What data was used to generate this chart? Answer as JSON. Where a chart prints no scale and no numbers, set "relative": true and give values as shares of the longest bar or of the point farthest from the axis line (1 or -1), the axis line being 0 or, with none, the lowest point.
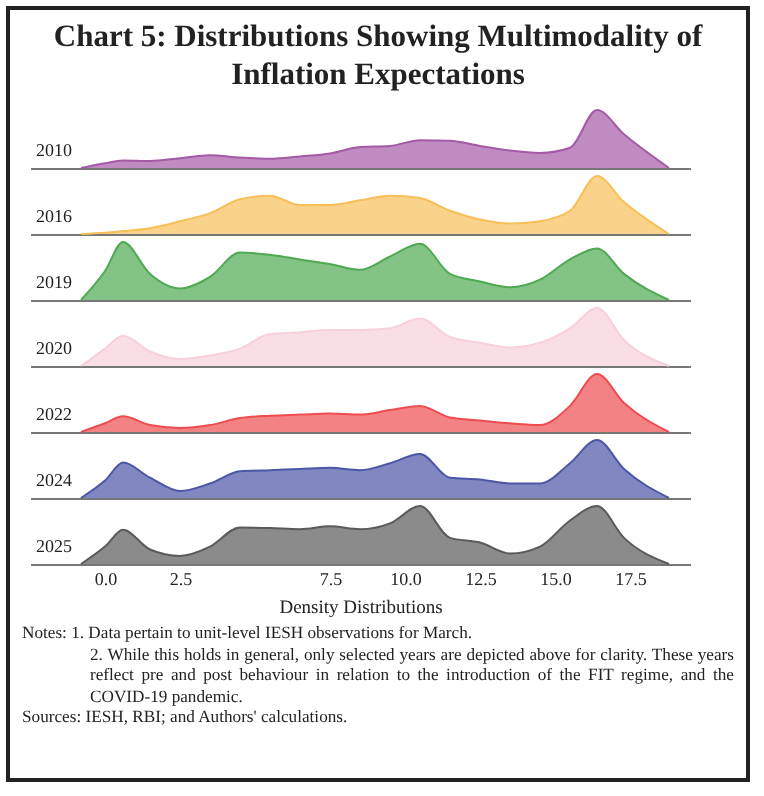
{
  "chart_data": [
    {
      "type": "area",
      "title": "Chart 5: Distributions Showing Multimodality of Inflation Expectations",
      "relative": true,
      "tick_labels": false,
      "xlim": [
        -2.5,
        19.5
      ],
      "x": [
        -0.8,
        0,
        0.6,
        1.5,
        2.5,
        3.5,
        4.5,
        5.5,
        6.5,
        7.5,
        8.5,
        9.5,
        10.5,
        11.5,
        12.5,
        13.5,
        14.5,
        15.5,
        16.4,
        17.3,
        18.8
      ],
      "series": [
        {
          "name": "2010",
          "color": "#a45aa5",
          "values": [
            0,
            0.08,
            0.13,
            0.12,
            0.17,
            0.22,
            0.18,
            0.16,
            0.2,
            0.25,
            0.36,
            0.38,
            0.48,
            0.47,
            0.38,
            0.3,
            0.26,
            0.35,
            1,
            0.58,
            0
          ]
        }
      ]
    },
    {
      "type": "area",
      "relative": true,
      "tick_labels": false,
      "xlim": [
        -2.5,
        19.5
      ],
      "x": [
        -0.8,
        0,
        0.6,
        1.5,
        2.5,
        3.5,
        4.5,
        5.5,
        6.5,
        7.5,
        8.5,
        9.5,
        10.5,
        11.5,
        12.5,
        13.5,
        14.5,
        15.5,
        16.4,
        17.3,
        18.8
      ],
      "series": [
        {
          "name": "2016",
          "color": "#f8bf58",
          "values": [
            0,
            0.02,
            0.05,
            0.1,
            0.22,
            0.36,
            0.6,
            0.66,
            0.5,
            0.5,
            0.58,
            0.66,
            0.62,
            0.4,
            0.25,
            0.18,
            0.22,
            0.4,
            1,
            0.55,
            0
          ]
        }
      ]
    },
    {
      "type": "area",
      "relative": true,
      "tick_labels": false,
      "xlim": [
        -2.5,
        19.5
      ],
      "x": [
        -0.8,
        0,
        0.6,
        1.5,
        2.5,
        3.5,
        4.5,
        5.5,
        6.5,
        7.5,
        8.5,
        9.5,
        10.5,
        11.5,
        12.5,
        13.5,
        14.5,
        15.5,
        16.4,
        17.3,
        18.8
      ],
      "series": [
        {
          "name": "2019",
          "color": "#4ea952",
          "values": [
            0,
            0.5,
            1,
            0.45,
            0.2,
            0.4,
            0.82,
            0.78,
            0.7,
            0.62,
            0.52,
            0.75,
            0.97,
            0.45,
            0.32,
            0.22,
            0.35,
            0.7,
            0.89,
            0.45,
            0
          ]
        }
      ]
    },
    {
      "type": "area",
      "relative": true,
      "tick_labels": false,
      "xlim": [
        -2.5,
        19.5
      ],
      "x": [
        -0.8,
        0,
        0.6,
        1.5,
        2.5,
        3.5,
        4.5,
        5.5,
        6.5,
        7.5,
        8.5,
        9.5,
        10.5,
        11.5,
        12.5,
        13.5,
        14.5,
        15.5,
        16.4,
        17.3,
        18.8
      ],
      "series": [
        {
          "name": "2020",
          "color": "#f7d0da",
          "values": [
            0,
            0.3,
            0.52,
            0.25,
            0.12,
            0.18,
            0.3,
            0.55,
            0.58,
            0.62,
            0.62,
            0.65,
            0.82,
            0.5,
            0.4,
            0.32,
            0.4,
            0.65,
            1,
            0.45,
            0
          ]
        }
      ]
    },
    {
      "type": "area",
      "relative": true,
      "tick_labels": false,
      "xlim": [
        -2.5,
        19.5
      ],
      "x": [
        -0.8,
        0,
        0.6,
        1.5,
        2.5,
        3.5,
        4.5,
        5.5,
        6.5,
        7.5,
        8.5,
        9.5,
        10.5,
        11.5,
        12.5,
        13.5,
        14.5,
        15.5,
        16.4,
        17.3,
        18.8
      ],
      "series": [
        {
          "name": "2022",
          "color": "#ee4d50",
          "values": [
            0,
            0.15,
            0.27,
            0.12,
            0.07,
            0.12,
            0.24,
            0.28,
            0.3,
            0.32,
            0.3,
            0.38,
            0.45,
            0.25,
            0.2,
            0.15,
            0.12,
            0.45,
            1,
            0.5,
            0
          ]
        }
      ]
    },
    {
      "type": "area",
      "relative": true,
      "tick_labels": false,
      "xlim": [
        -2.5,
        19.5
      ],
      "x": [
        -0.8,
        0,
        0.6,
        1.5,
        2.5,
        3.5,
        4.5,
        5.5,
        6.5,
        7.5,
        8.5,
        9.5,
        10.5,
        11.5,
        12.5,
        13.5,
        14.5,
        15.5,
        16.4,
        17.3,
        18.8
      ],
      "series": [
        {
          "name": "2024",
          "color": "#4c56a6",
          "values": [
            0,
            0.3,
            0.61,
            0.35,
            0.12,
            0.25,
            0.46,
            0.48,
            0.5,
            0.52,
            0.48,
            0.6,
            0.76,
            0.35,
            0.32,
            0.25,
            0.25,
            0.6,
            1,
            0.5,
            0
          ]
        }
      ]
    },
    {
      "type": "area",
      "relative": true,
      "tick_labels": "x",
      "xlabel": "Density Distributions",
      "xlim": [
        -2.5,
        19.5
      ],
      "xticks": [
        {
          "value": 0,
          "label": "0.0"
        },
        2.5,
        7.5,
        {
          "value": 10,
          "label": "10.0"
        },
        12.5,
        {
          "value": 15,
          "label": "15.0"
        },
        17.5
      ],
      "x": [
        -0.8,
        0,
        0.6,
        1.5,
        2.5,
        3.5,
        4.5,
        5.5,
        6.5,
        7.5,
        8.5,
        9.5,
        10.5,
        11.5,
        12.5,
        13.5,
        14.5,
        15.5,
        16.4,
        17.3,
        18.8
      ],
      "series": [
        {
          "name": "2025",
          "color": "#5a5a5a",
          "values": [
            0,
            0.3,
            0.59,
            0.25,
            0.14,
            0.3,
            0.63,
            0.62,
            0.6,
            0.65,
            0.6,
            0.7,
            1,
            0.45,
            0.37,
            0.18,
            0.3,
            0.75,
            1,
            0.45,
            0
          ]
        }
      ],
      "annotations": [
        "Notes: 1. Data pertain to unit-level IESH observations for March.",
        "2. While this holds in general, only selected years are depicted above for clarity. These years reflect pre and post behaviour in relation to the introduction of the FIT regime, and the COVID-19 pandemic.",
        "Sources: IESH, RBI; and Authors' calculations."
      ]
    }
  ]
}
